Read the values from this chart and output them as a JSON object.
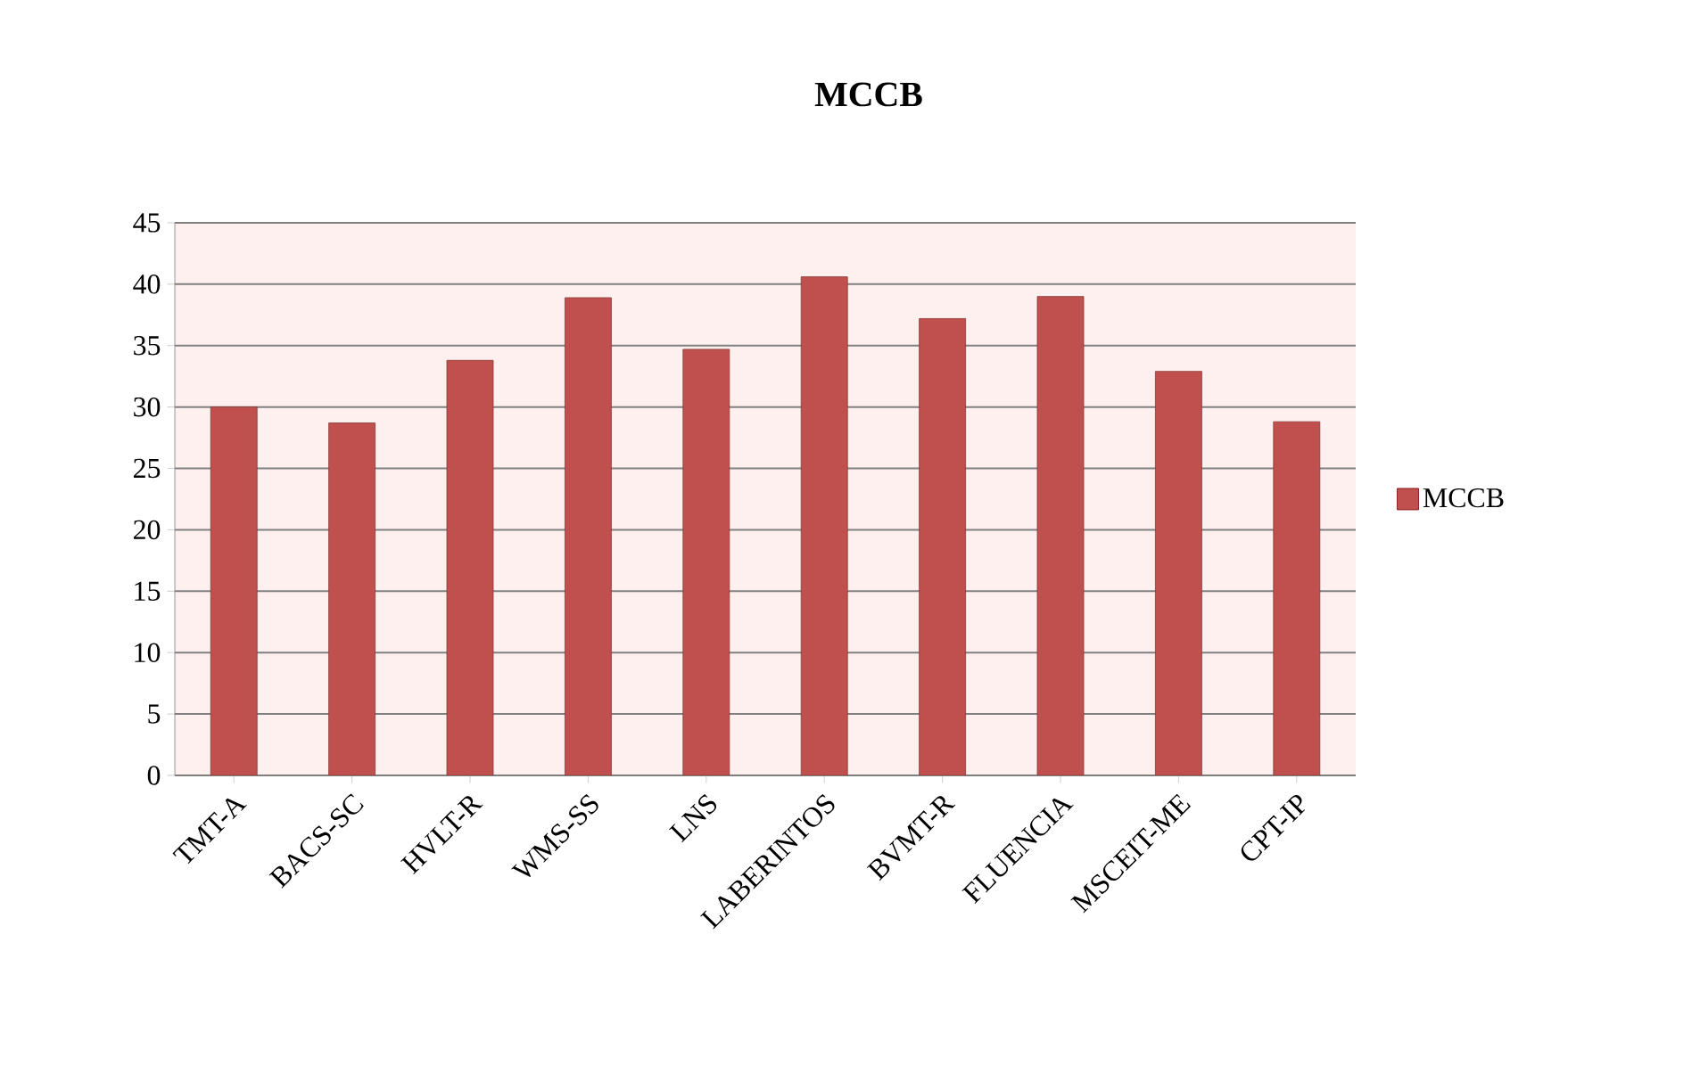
{
  "chart_data": {
    "type": "bar",
    "title": "MCCB",
    "categories": [
      "TMT-A",
      "BACS-SC",
      "HVLT-R",
      "WMS-SS",
      "LNS",
      "LABERINTOS",
      "BVMT-R",
      "FLUENCIA",
      "MSCEIT-ME",
      "CPT-IP"
    ],
    "series": [
      {
        "name": "MCCB",
        "color": "#c0504d",
        "values": [
          30,
          28.7,
          33.8,
          38.9,
          34.7,
          40.6,
          37.2,
          39,
          32.9,
          28.8
        ]
      }
    ],
    "ylim": [
      0,
      45
    ],
    "yticks": [
      0,
      5,
      10,
      15,
      20,
      25,
      30,
      35,
      40,
      45
    ],
    "grid": "y",
    "legend": "right"
  }
}
